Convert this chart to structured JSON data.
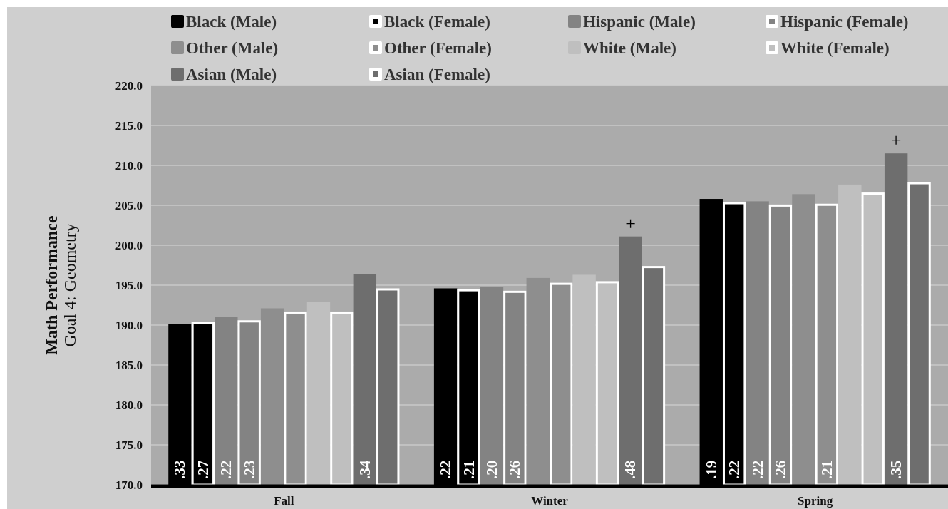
{
  "chart_data": {
    "type": "bar",
    "ylabel": "Math Performance\nGoal 4: Geometry",
    "categories": [
      "Fall",
      "Winter",
      "Spring"
    ],
    "ylim": [
      170,
      220
    ],
    "yticks": [
      {
        "value": 170,
        "label": "170.0"
      },
      {
        "value": 175,
        "label": "175.0"
      },
      {
        "value": 180,
        "label": "180.0"
      },
      {
        "value": 185,
        "label": "185.0"
      },
      {
        "value": 190,
        "label": "190.0"
      },
      {
        "value": 195,
        "label": "195.0"
      },
      {
        "value": 200,
        "label": "200.0"
      },
      {
        "value": 205,
        "label": "205.0"
      },
      {
        "value": 210,
        "label": "210.0"
      },
      {
        "value": 215,
        "label": "215.0"
      },
      {
        "value": 220,
        "label": "220.0"
      }
    ],
    "grid": "y",
    "legend": "top",
    "series": [
      {
        "name": "Black (Male)",
        "color": "#000000",
        "values": [
          190.1,
          194.6,
          205.8
        ]
      },
      {
        "name": "Black (Female)",
        "color": "#000000",
        "values": [
          190.4,
          194.5,
          205.4
        ]
      },
      {
        "name": "Hispanic (Male)",
        "color": "#838383",
        "values": [
          191.0,
          194.8,
          205.5
        ]
      },
      {
        "name": "Hispanic (Female)",
        "color": "#838383",
        "values": [
          190.6,
          194.3,
          205.1
        ]
      },
      {
        "name": "Other (Male)",
        "color": "#8e8e8e",
        "values": [
          192.1,
          195.9,
          206.4
        ]
      },
      {
        "name": "Other (Female)",
        "color": "#8e8e8e",
        "values": [
          191.7,
          195.3,
          205.2
        ]
      },
      {
        "name": "White (Male)",
        "color": "#bfbfbf",
        "values": [
          192.9,
          196.3,
          207.6
        ]
      },
      {
        "name": "White (Female)",
        "color": "#bfbfbf",
        "values": [
          191.7,
          195.5,
          206.6
        ]
      },
      {
        "name": "Asian (Male)",
        "color": "#6e6e6e",
        "values": [
          196.4,
          201.1,
          211.5
        ]
      },
      {
        "name": "Asian (Female)",
        "color": "#6e6e6e",
        "values": [
          194.6,
          197.4,
          207.9
        ]
      }
    ],
    "annotations": [
      ".33",
      ".27",
      ".22",
      ".23",
      ".34",
      ".22",
      ".21",
      ".20",
      ".26",
      ".48",
      ".19",
      ".22",
      ".22",
      ".26",
      ".21",
      ".35",
      "+",
      "+"
    ]
  }
}
